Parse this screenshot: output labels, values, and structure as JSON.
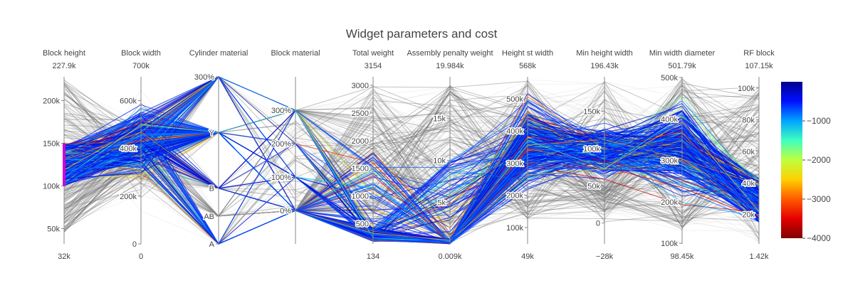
{
  "chart_data": {
    "type": "parcoords",
    "title": "Widget parameters and cost",
    "colorscale": {
      "name": "Jet",
      "range": [
        -4000,
        0
      ],
      "ticks": [
        "−1000",
        "−2000",
        "−3000",
        "−4000"
      ],
      "tick_values": [
        -1000,
        -2000,
        -3000,
        -4000
      ],
      "stops": [
        "#7f0000",
        "#e40000",
        "#ff5a00",
        "#ffd000",
        "#bfff3f",
        "#3fffbf",
        "#00a4ff",
        "#0010ff",
        "#00008f"
      ]
    },
    "axes": [
      {
        "name": "Block height",
        "max_label": "227.9k",
        "min_label": "32k",
        "range": [
          32,
          227.9
        ],
        "ticks": [
          {
            "v": 50,
            "label": "50k"
          },
          {
            "v": 100,
            "label": "100k"
          },
          {
            "v": 150,
            "label": "150k"
          },
          {
            "v": 200,
            "label": "200k"
          }
        ],
        "constraint": [
          100,
          150
        ]
      },
      {
        "name": "Block width",
        "max_label": "700k",
        "min_label": "0",
        "range": [
          0,
          700
        ],
        "ticks": [
          {
            "v": 0,
            "label": "0"
          },
          {
            "v": 200,
            "label": "200k"
          },
          {
            "v": 400,
            "label": "400k"
          },
          {
            "v": 600,
            "label": "600k"
          }
        ]
      },
      {
        "name": "Cylinder material",
        "max_label": "",
        "min_label": "",
        "range": [
          0,
          3
        ],
        "ticks": [
          {
            "v": 0,
            "label": "A"
          },
          {
            "v": 0.5,
            "label": "AB"
          },
          {
            "v": 1,
            "label": "B"
          },
          {
            "v": 2,
            "label": "Y"
          },
          {
            "v": 3,
            "label": "300%"
          }
        ]
      },
      {
        "name": "Block material",
        "max_label": "",
        "min_label": "",
        "range": [
          -1,
          4
        ],
        "ticks": [
          {
            "v": 0,
            "label": "0%"
          },
          {
            "v": 1,
            "label": "100%"
          },
          {
            "v": 2,
            "label": "200%"
          },
          {
            "v": 3,
            "label": "300%"
          }
        ]
      },
      {
        "name": "Total weight",
        "max_label": "3154",
        "min_label": "134",
        "range": [
          134,
          3154
        ],
        "ticks": [
          {
            "v": 500,
            "label": "500"
          },
          {
            "v": 1000,
            "label": "1000"
          },
          {
            "v": 1500,
            "label": "1500"
          },
          {
            "v": 2000,
            "label": "2000"
          },
          {
            "v": 2500,
            "label": "2500"
          },
          {
            "v": 3000,
            "label": "3000"
          }
        ]
      },
      {
        "name": "Assembly penalty weight",
        "max_label": "19.984k",
        "min_label": "0.009k",
        "range": [
          0.009,
          19.984
        ],
        "ticks": [
          {
            "v": 5,
            "label": "5k"
          },
          {
            "v": 10,
            "label": "10k"
          },
          {
            "v": 15,
            "label": "15k"
          }
        ]
      },
      {
        "name": "Height st width",
        "max_label": "568k",
        "min_label": "49k",
        "range": [
          49,
          568
        ],
        "ticks": [
          {
            "v": 100,
            "label": "100k"
          },
          {
            "v": 200,
            "label": "200k"
          },
          {
            "v": 300,
            "label": "300k"
          },
          {
            "v": 400,
            "label": "400k"
          },
          {
            "v": 500,
            "label": "500k"
          }
        ]
      },
      {
        "name": "Min height width",
        "max_label": "196.43k",
        "min_label": "−28k",
        "range": [
          -28,
          196.43
        ],
        "ticks": [
          {
            "v": 0,
            "label": "0"
          },
          {
            "v": 50,
            "label": "50k"
          },
          {
            "v": 100,
            "label": "100k"
          },
          {
            "v": 150,
            "label": "150k"
          }
        ]
      },
      {
        "name": "Min width diameter",
        "max_label": "501.79k",
        "min_label": "98.45k",
        "range": [
          98.45,
          501.79
        ],
        "ticks": [
          {
            "v": 100,
            "label": "100k"
          },
          {
            "v": 200,
            "label": "200k"
          },
          {
            "v": 300,
            "label": "300k"
          },
          {
            "v": 400,
            "label": "400k"
          },
          {
            "v": 500,
            "label": "500k"
          }
        ]
      },
      {
        "name": "RF block",
        "max_label": "107.15k",
        "min_label": "1.42k",
        "range": [
          1.42,
          107.15
        ],
        "ticks": [
          {
            "v": 20,
            "label": "20k"
          },
          {
            "v": 40,
            "label": "40k"
          },
          {
            "v": 60,
            "label": "60k"
          },
          {
            "v": 80,
            "label": "80k"
          },
          {
            "v": 100,
            "label": "100k"
          }
        ]
      }
    ]
  }
}
